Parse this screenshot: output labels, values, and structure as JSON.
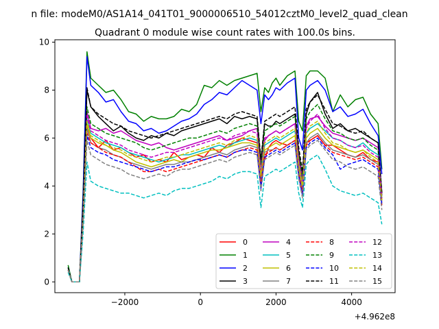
{
  "figure": {
    "suptitle": "n file: modeM0/AS1A14_041T01_9000006510_54012cztM0_level2_quad_clean",
    "title": "Quadrant 0 module wise count rates with 100.0s bins.",
    "offset_label": "+4.962e8"
  },
  "chart_data": {
    "type": "line",
    "title": "Quadrant 0 module wise count rates with 100.0s bins.",
    "xlabel": "",
    "ylabel": "",
    "x_offset": 496200000,
    "xlim": [
      -3850,
      5150
    ],
    "ylim": [
      -0.45,
      10.1
    ],
    "xticks": [
      -2000,
      0,
      2000,
      4000
    ],
    "xtick_labels": [
      "−2000",
      "0",
      "2000",
      "4000"
    ],
    "yticks": [
      0,
      2,
      4,
      6,
      8,
      10
    ],
    "ytick_labels": [
      "0",
      "2",
      "4",
      "6",
      "8",
      "10"
    ],
    "grid": false,
    "legend": {
      "placement": "lower-right",
      "ncol": 4
    },
    "x": [
      -3500,
      -3400,
      -3300,
      -3200,
      -3100,
      -3000,
      -2900,
      -2700,
      -2500,
      -2300,
      -2100,
      -1900,
      -1700,
      -1500,
      -1300,
      -1100,
      -900,
      -700,
      -500,
      -300,
      -100,
      100,
      300,
      500,
      700,
      900,
      1100,
      1300,
      1500,
      1600,
      1700,
      1800,
      1900,
      2000,
      2100,
      2300,
      2500,
      2600,
      2700,
      2800,
      2900,
      3100,
      3300,
      3500,
      3700,
      3900,
      4100,
      4300,
      4500,
      4700,
      4800
    ],
    "series": [
      {
        "name": "0",
        "color": "#ff0000",
        "dash": false,
        "values": [
          0.5,
          0.0,
          0.0,
          0.0,
          2.7,
          6.5,
          6.0,
          5.6,
          5.9,
          5.5,
          5.6,
          5.4,
          5.2,
          5.3,
          5.0,
          5.1,
          5.0,
          5.4,
          5.1,
          5.2,
          5.3,
          5.2,
          5.6,
          5.4,
          5.7,
          5.8,
          6.0,
          5.9,
          5.8,
          4.6,
          5.1,
          5.6,
          5.8,
          5.9,
          5.8,
          5.7,
          5.9,
          4.9,
          4.1,
          5.8,
          5.9,
          6.1,
          5.7,
          5.7,
          5.5,
          5.3,
          5.2,
          5.4,
          5.1,
          5.0,
          3.4
        ]
      },
      {
        "name": "1",
        "color": "#008000",
        "dash": false,
        "values": [
          0.7,
          0.0,
          0.0,
          0.0,
          3.9,
          9.6,
          8.5,
          8.2,
          7.9,
          8.0,
          7.6,
          7.1,
          7.0,
          6.7,
          6.9,
          6.8,
          6.8,
          6.9,
          7.2,
          7.1,
          7.4,
          8.2,
          8.1,
          8.4,
          8.2,
          8.4,
          8.5,
          8.6,
          8.7,
          7.1,
          8.1,
          7.9,
          8.3,
          8.5,
          8.2,
          8.6,
          8.8,
          6.7,
          6.3,
          8.6,
          8.8,
          8.8,
          8.5,
          7.1,
          7.8,
          7.3,
          7.6,
          7.7,
          7.0,
          6.6,
          4.7
        ]
      },
      {
        "name": "2",
        "color": "#0000ff",
        "dash": false,
        "values": [
          0.6,
          0.0,
          0.0,
          0.0,
          3.7,
          9.4,
          8.2,
          7.9,
          7.5,
          7.6,
          7.1,
          6.7,
          6.6,
          6.3,
          6.4,
          6.2,
          6.3,
          6.5,
          6.7,
          6.8,
          7.0,
          7.4,
          7.6,
          7.9,
          7.8,
          8.1,
          8.4,
          8.2,
          8.0,
          6.6,
          7.8,
          7.6,
          7.8,
          8.1,
          8.0,
          8.3,
          8.5,
          6.0,
          5.5,
          8.0,
          8.2,
          8.4,
          8.0,
          7.1,
          7.3,
          6.9,
          7.0,
          7.2,
          6.6,
          6.1,
          4.5
        ]
      },
      {
        "name": "3",
        "color": "#000000",
        "dash": false,
        "values": [
          0.5,
          0.0,
          0.0,
          0.0,
          3.2,
          8.0,
          7.3,
          6.9,
          6.6,
          6.3,
          6.5,
          6.2,
          6.0,
          5.9,
          6.1,
          6.0,
          6.2,
          6.1,
          6.3,
          6.4,
          6.5,
          6.6,
          6.7,
          6.8,
          6.6,
          6.9,
          6.8,
          6.9,
          6.8,
          5.0,
          6.6,
          6.5,
          6.5,
          6.7,
          6.6,
          6.8,
          7.0,
          5.4,
          4.4,
          7.0,
          7.5,
          7.9,
          7.0,
          6.4,
          6.6,
          6.3,
          6.4,
          6.2,
          6.0,
          5.8,
          3.7
        ]
      },
      {
        "name": "4",
        "color": "#bf00bf",
        "dash": false,
        "values": [
          0.5,
          0.0,
          0.0,
          0.0,
          2.9,
          7.1,
          6.4,
          6.3,
          6.4,
          6.2,
          6.3,
          6.1,
          5.9,
          5.8,
          5.7,
          5.8,
          5.6,
          5.5,
          5.6,
          5.7,
          5.8,
          5.9,
          6.0,
          6.1,
          5.9,
          6.0,
          6.1,
          6.3,
          6.4,
          4.8,
          5.9,
          6.1,
          6.2,
          6.3,
          6.2,
          6.4,
          6.6,
          5.2,
          4.3,
          6.5,
          6.8,
          6.9,
          6.5,
          6.2,
          6.1,
          6.0,
          5.9,
          6.0,
          5.8,
          5.6,
          3.6
        ]
      },
      {
        "name": "5",
        "color": "#00bfbf",
        "dash": false,
        "values": [
          0.6,
          0.0,
          0.0,
          0.0,
          2.8,
          6.8,
          6.2,
          6.0,
          5.8,
          5.7,
          5.6,
          5.4,
          5.3,
          5.2,
          5.1,
          5.0,
          5.1,
          5.2,
          5.3,
          5.3,
          5.4,
          5.5,
          5.6,
          5.7,
          5.6,
          5.8,
          5.9,
          6.0,
          5.9,
          4.5,
          5.7,
          5.8,
          5.9,
          6.0,
          5.9,
          6.1,
          6.3,
          4.9,
          4.0,
          6.2,
          6.4,
          6.6,
          6.3,
          6.0,
          5.9,
          5.7,
          5.6,
          5.8,
          5.5,
          5.3,
          3.5
        ]
      },
      {
        "name": "6",
        "color": "#bfbf00",
        "dash": false,
        "values": [
          0.5,
          0.0,
          0.0,
          0.0,
          2.8,
          6.6,
          6.0,
          5.8,
          5.7,
          5.5,
          5.4,
          5.2,
          5.0,
          4.9,
          4.8,
          4.9,
          5.0,
          5.1,
          5.0,
          5.2,
          5.3,
          5.4,
          5.5,
          5.5,
          5.6,
          5.7,
          5.8,
          5.8,
          5.7,
          4.3,
          5.5,
          5.6,
          5.7,
          5.8,
          5.7,
          5.9,
          6.1,
          4.7,
          3.9,
          6.0,
          6.2,
          6.4,
          6.0,
          5.7,
          5.6,
          5.5,
          5.4,
          5.5,
          5.3,
          5.1,
          3.4
        ]
      },
      {
        "name": "7",
        "color": "#808080",
        "dash": false,
        "values": [
          0.5,
          0.0,
          0.0,
          0.0,
          2.7,
          6.4,
          5.8,
          5.6,
          5.5,
          5.3,
          5.2,
          5.0,
          4.9,
          4.8,
          4.7,
          4.8,
          4.9,
          4.9,
          5.0,
          5.0,
          5.1,
          5.2,
          5.3,
          5.4,
          5.3,
          5.5,
          5.6,
          5.7,
          5.6,
          4.2,
          5.4,
          5.5,
          5.5,
          5.6,
          5.5,
          5.7,
          5.9,
          4.6,
          3.8,
          5.8,
          6.0,
          6.2,
          5.8,
          5.5,
          5.4,
          5.3,
          5.2,
          5.3,
          5.1,
          4.9,
          3.3
        ]
      },
      {
        "name": "8",
        "color": "#ff0000",
        "dash": true,
        "values": [
          0.5,
          0.0,
          0.0,
          0.0,
          2.6,
          6.2,
          5.8,
          5.6,
          5.4,
          5.3,
          5.2,
          5.0,
          4.8,
          4.6,
          4.6,
          4.7,
          4.6,
          4.7,
          4.8,
          4.9,
          5.0,
          5.1,
          5.2,
          5.3,
          5.2,
          5.4,
          5.5,
          5.6,
          5.5,
          4.1,
          5.3,
          5.4,
          5.5,
          5.6,
          5.5,
          5.7,
          5.9,
          4.5,
          3.7,
          5.7,
          5.9,
          6.1,
          5.7,
          5.4,
          5.3,
          5.2,
          5.1,
          5.2,
          5.0,
          4.8,
          3.2
        ]
      },
      {
        "name": "9",
        "color": "#008000",
        "dash": true,
        "values": [
          0.6,
          0.0,
          0.0,
          0.0,
          3.0,
          7.3,
          6.6,
          6.4,
          6.2,
          6.1,
          6.0,
          5.9,
          5.8,
          5.6,
          5.5,
          5.6,
          5.7,
          5.8,
          5.9,
          6.0,
          6.0,
          6.1,
          6.2,
          6.3,
          6.2,
          6.4,
          6.5,
          6.6,
          6.5,
          4.9,
          6.3,
          6.4,
          6.5,
          6.6,
          6.5,
          6.7,
          6.9,
          5.3,
          4.3,
          6.8,
          7.1,
          7.4,
          6.8,
          6.3,
          6.2,
          6.0,
          5.9,
          6.0,
          5.7,
          5.5,
          3.6
        ]
      },
      {
        "name": "10",
        "color": "#0000ff",
        "dash": true,
        "values": [
          0.5,
          0.0,
          0.0,
          0.0,
          2.6,
          6.1,
          5.6,
          5.4,
          5.3,
          5.1,
          5.0,
          4.9,
          4.8,
          4.7,
          4.6,
          4.7,
          4.8,
          4.8,
          4.9,
          5.0,
          5.1,
          5.1,
          5.2,
          5.3,
          5.2,
          5.4,
          5.5,
          5.5,
          5.4,
          3.9,
          5.2,
          5.3,
          5.4,
          5.5,
          5.4,
          5.6,
          5.8,
          4.4,
          3.6,
          5.6,
          5.8,
          6.0,
          5.6,
          5.3,
          4.7,
          4.9,
          5.0,
          5.1,
          4.9,
          4.7,
          3.2
        ]
      },
      {
        "name": "11",
        "color": "#000000",
        "dash": true,
        "values": [
          0.6,
          0.0,
          0.0,
          0.0,
          3.3,
          8.1,
          7.3,
          7.0,
          6.8,
          6.6,
          6.5,
          6.3,
          6.2,
          6.1,
          6.0,
          6.1,
          6.2,
          6.3,
          6.4,
          6.5,
          6.6,
          6.7,
          6.8,
          6.9,
          6.8,
          7.0,
          7.1,
          7.0,
          6.9,
          5.1,
          6.7,
          6.8,
          6.9,
          7.0,
          6.9,
          7.1,
          7.3,
          5.6,
          4.6,
          7.2,
          7.5,
          7.8,
          7.2,
          6.6,
          6.5,
          6.3,
          6.2,
          6.3,
          6.0,
          5.8,
          3.7
        ]
      },
      {
        "name": "12",
        "color": "#bf00bf",
        "dash": true,
        "values": [
          0.5,
          0.0,
          0.0,
          0.0,
          2.9,
          6.9,
          6.3,
          6.1,
          5.9,
          5.8,
          5.7,
          5.5,
          5.4,
          5.3,
          5.2,
          5.3,
          5.4,
          5.4,
          5.5,
          5.6,
          5.7,
          5.8,
          5.9,
          6.0,
          5.9,
          6.1,
          6.2,
          6.3,
          6.2,
          4.6,
          6.0,
          6.1,
          6.2,
          6.3,
          6.2,
          6.4,
          6.6,
          5.1,
          4.1,
          6.4,
          6.7,
          7.0,
          6.4,
          6.0,
          5.9,
          5.7,
          5.6,
          5.7,
          5.4,
          5.2,
          3.5
        ]
      },
      {
        "name": "13",
        "color": "#00bfbf",
        "dash": true,
        "values": [
          0.4,
          0.0,
          0.0,
          0.0,
          2.1,
          5.0,
          4.2,
          4.0,
          3.9,
          3.8,
          3.7,
          3.7,
          3.6,
          3.5,
          3.6,
          3.7,
          3.6,
          3.8,
          3.9,
          3.9,
          4.0,
          4.1,
          4.2,
          4.4,
          4.3,
          4.5,
          4.6,
          4.6,
          4.5,
          3.1,
          4.4,
          4.5,
          4.6,
          4.7,
          4.6,
          4.8,
          5.0,
          3.7,
          3.1,
          4.9,
          5.1,
          5.3,
          4.7,
          4.0,
          3.8,
          3.7,
          3.6,
          3.7,
          3.5,
          3.3,
          2.4
        ]
      },
      {
        "name": "14",
        "color": "#bfbf00",
        "dash": true,
        "values": [
          0.5,
          0.0,
          0.0,
          0.0,
          2.8,
          6.7,
          6.1,
          5.9,
          5.7,
          5.6,
          5.5,
          5.3,
          5.2,
          5.1,
          5.0,
          5.1,
          5.2,
          5.2,
          5.3,
          5.4,
          5.5,
          5.6,
          5.7,
          5.8,
          5.7,
          5.9,
          6.0,
          6.1,
          6.0,
          4.4,
          5.8,
          5.9,
          6.0,
          6.1,
          6.0,
          6.2,
          6.4,
          4.9,
          4.0,
          6.2,
          6.5,
          6.7,
          6.2,
          5.8,
          5.7,
          5.5,
          5.4,
          5.5,
          5.2,
          5.0,
          3.4
        ]
      },
      {
        "name": "15",
        "color": "#808080",
        "dash": true,
        "values": [
          0.5,
          0.0,
          0.0,
          0.0,
          2.5,
          5.9,
          5.3,
          5.1,
          4.9,
          4.8,
          4.7,
          4.5,
          4.4,
          4.3,
          4.4,
          4.5,
          4.4,
          4.6,
          4.7,
          4.7,
          4.8,
          4.9,
          5.0,
          5.1,
          5.0,
          5.2,
          5.3,
          5.4,
          5.3,
          3.8,
          5.1,
          5.2,
          5.3,
          5.4,
          5.3,
          5.5,
          5.7,
          4.3,
          3.5,
          5.5,
          5.7,
          5.9,
          5.5,
          5.1,
          5.0,
          4.8,
          4.7,
          4.8,
          4.6,
          4.4,
          3.0
        ]
      }
    ]
  }
}
